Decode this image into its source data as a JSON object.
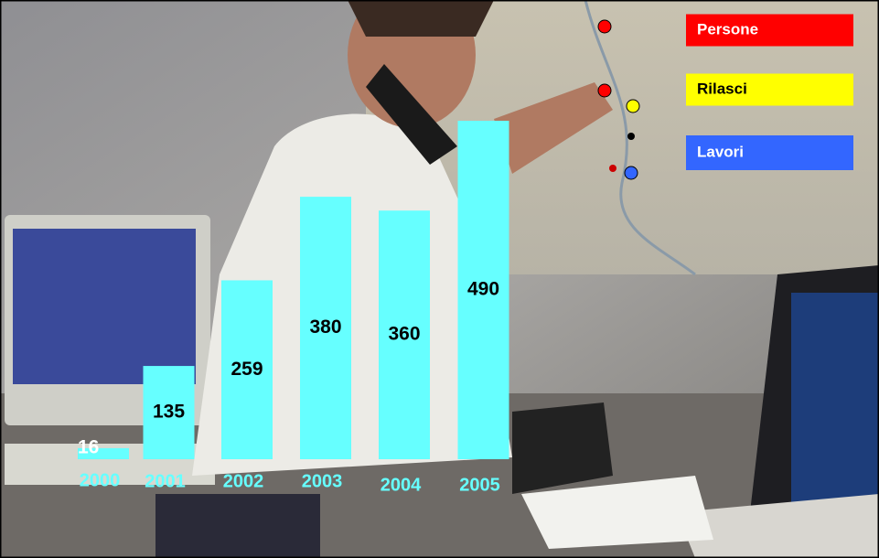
{
  "chart_data": {
    "type": "bar",
    "categories": [
      "2000",
      "2001",
      "2002",
      "2003",
      "2004",
      "2005"
    ],
    "values": [
      16,
      135,
      259,
      380,
      360,
      490
    ],
    "color": "#66ffff",
    "legend": [
      {
        "label": "Persone",
        "color": "#ff0000"
      },
      {
        "label": "Rilasci",
        "color": "#ffff00"
      },
      {
        "label": "Lavori",
        "color": "#3366ff"
      }
    ]
  }
}
